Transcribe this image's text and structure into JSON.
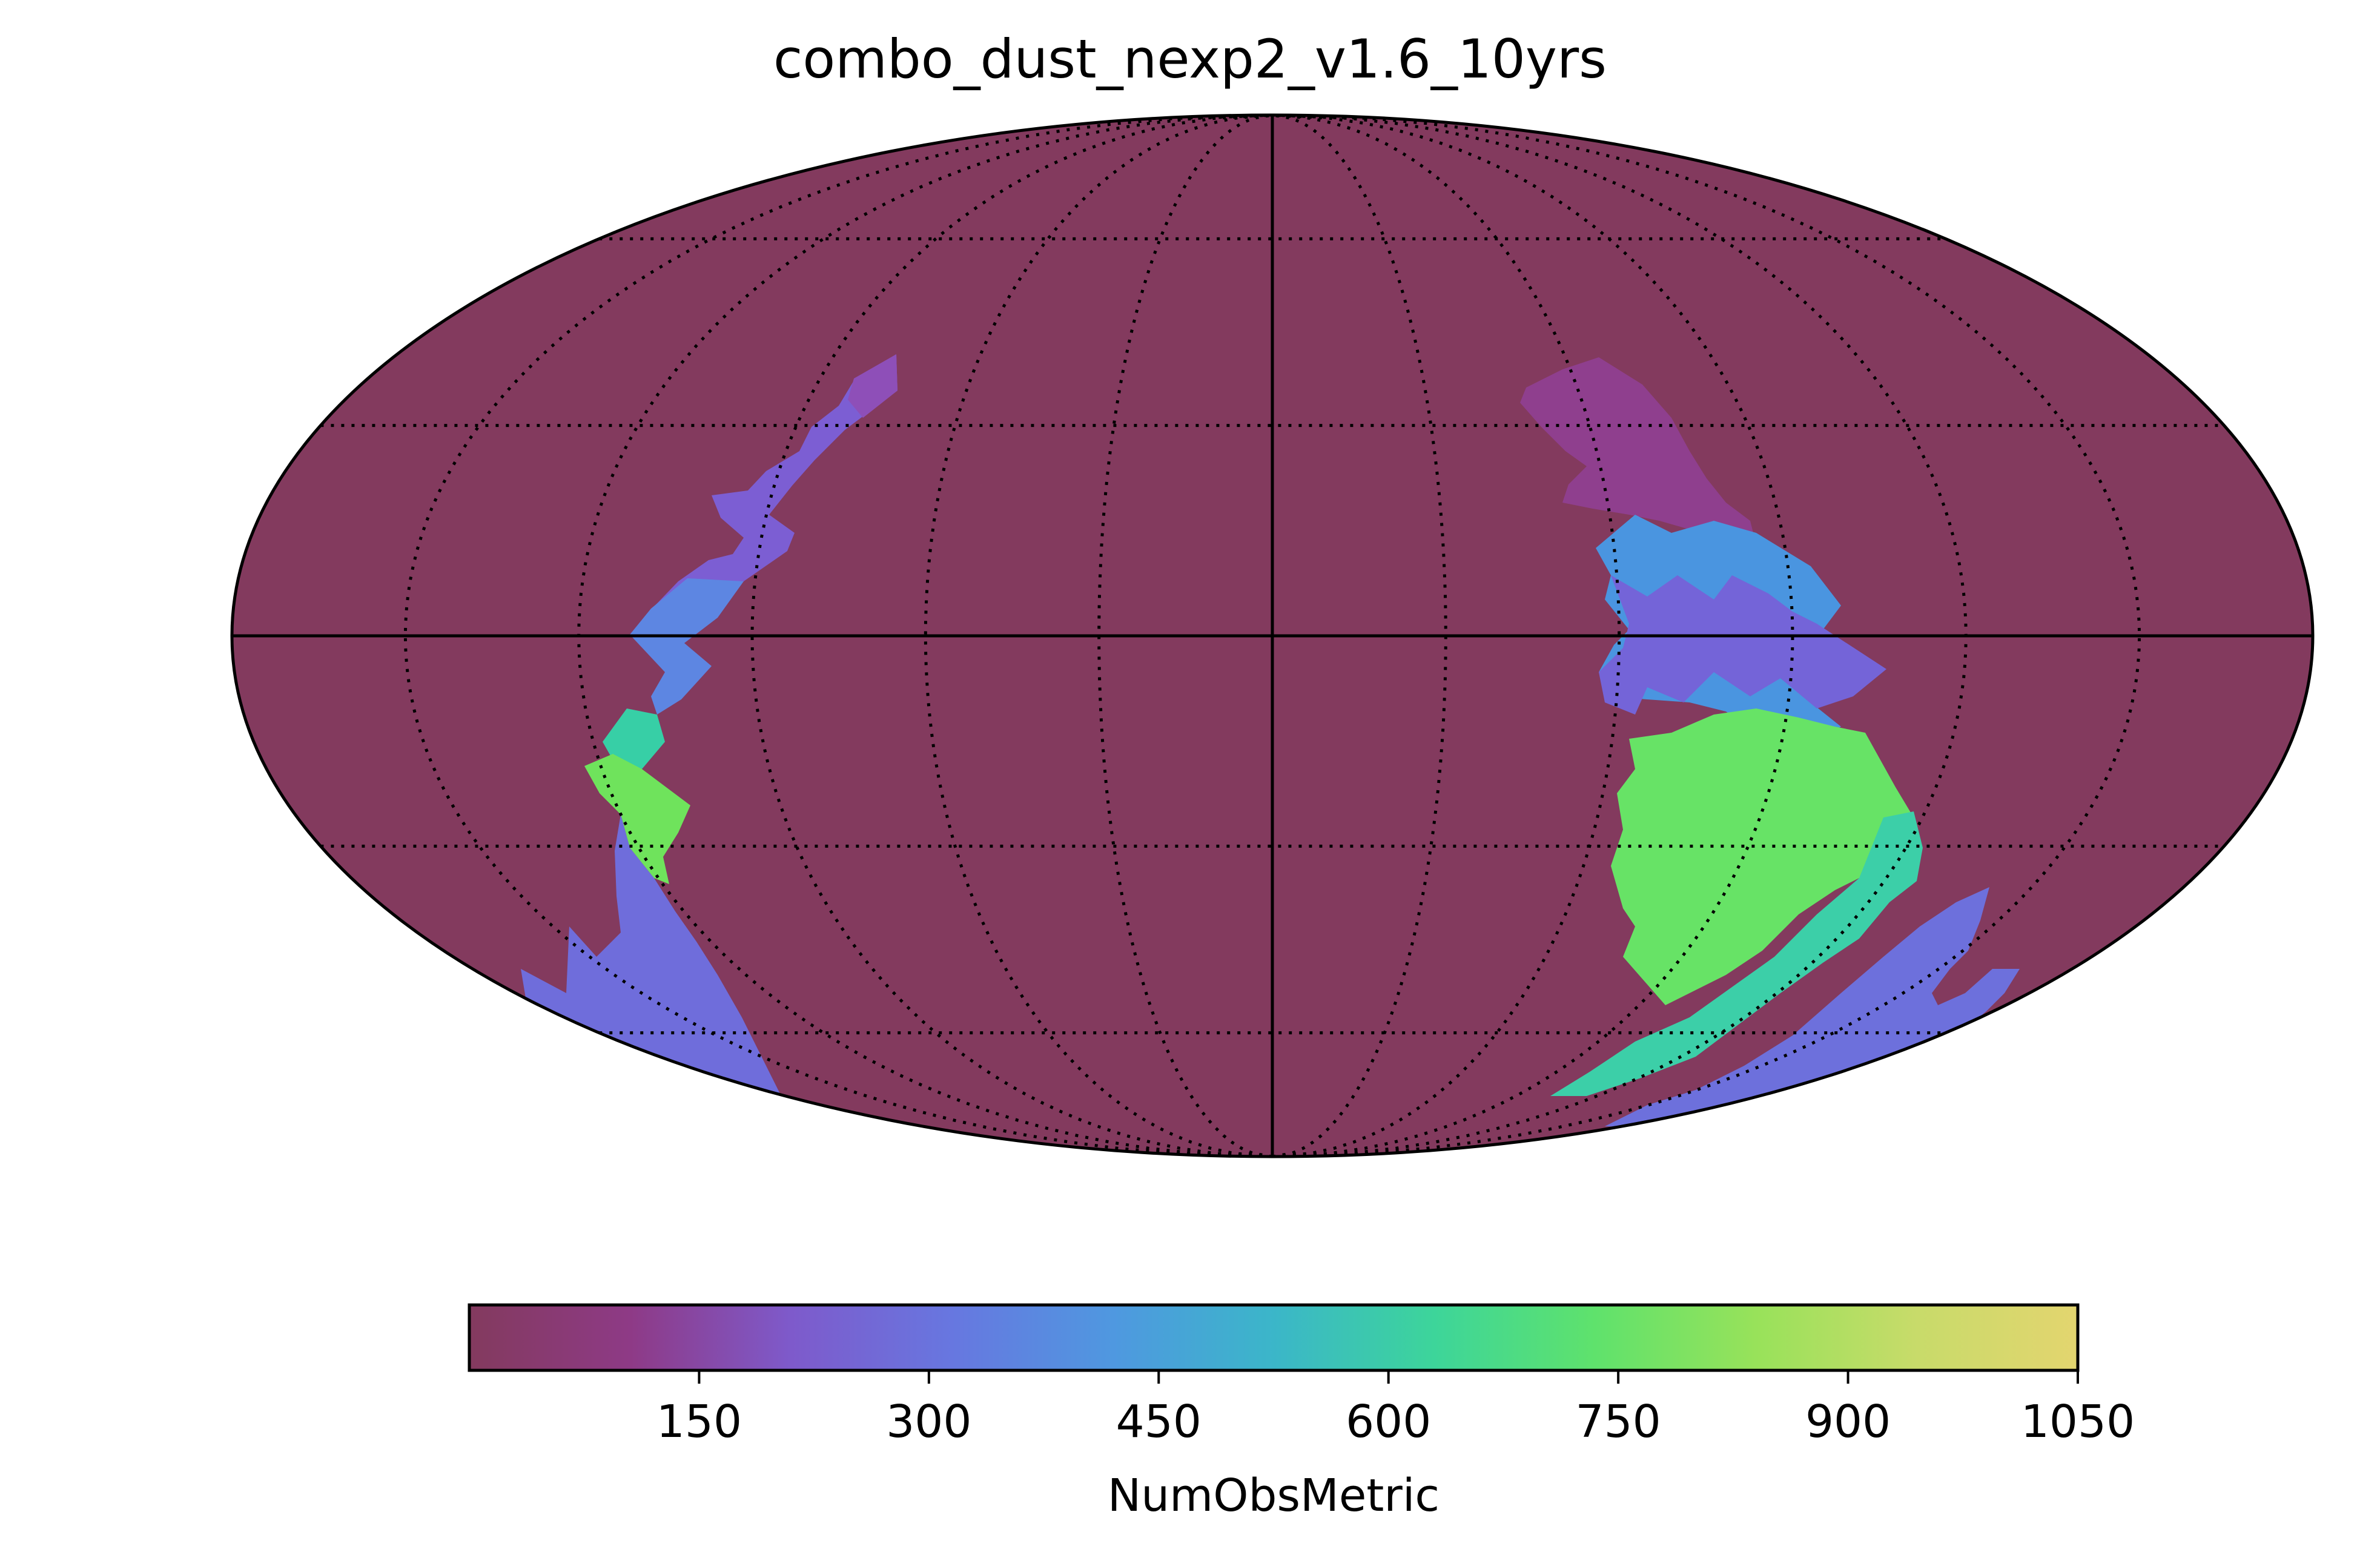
{
  "chart_data": {
    "type": "heatmap",
    "projection": "mollweide",
    "title": "combo_dust_nexp2_v1.6_10yrs",
    "colorbar": {
      "label": "NumObsMetric",
      "range": [
        0,
        1050
      ],
      "ticks": [
        "150",
        "300",
        "450",
        "600",
        "750",
        "900",
        "1050"
      ],
      "colormap": [
        "#833a5e",
        "#8e3a86",
        "#7e5acb",
        "#6777e0",
        "#4f98e0",
        "#3bb6c9",
        "#3dd59a",
        "#5fe26c",
        "#98e25a",
        "#c8db6a",
        "#e3d56f"
      ]
    },
    "background_value": 0,
    "regions": [
      {
        "name": "left-arc-upper",
        "value": 250,
        "color": "#7c5ed3"
      },
      {
        "name": "left-arc-tip",
        "value": 200,
        "color": "#8e4fb8"
      },
      {
        "name": "left-arc-equator",
        "value": 420,
        "color": "#5d86e2"
      },
      {
        "name": "left-arc-teal",
        "value": 610,
        "color": "#37cfa6"
      },
      {
        "name": "left-arc-green",
        "value": 800,
        "color": "#6fe35c"
      },
      {
        "name": "left-arc-lower",
        "value": 300,
        "color": "#6f6ddb"
      },
      {
        "name": "right-arc-upper",
        "value": 120,
        "color": "#8f3f8e"
      },
      {
        "name": "right-arc-blue",
        "value": 440,
        "color": "#4a95e0"
      },
      {
        "name": "right-arc-purple",
        "value": 280,
        "color": "#7464d8"
      },
      {
        "name": "right-arc-green",
        "value": 760,
        "color": "#67e366"
      },
      {
        "name": "right-arc-teal",
        "value": 600,
        "color": "#3ccfa8"
      },
      {
        "name": "right-arc-lower",
        "value": 300,
        "color": "#6d70dc"
      }
    ],
    "grid": true
  }
}
